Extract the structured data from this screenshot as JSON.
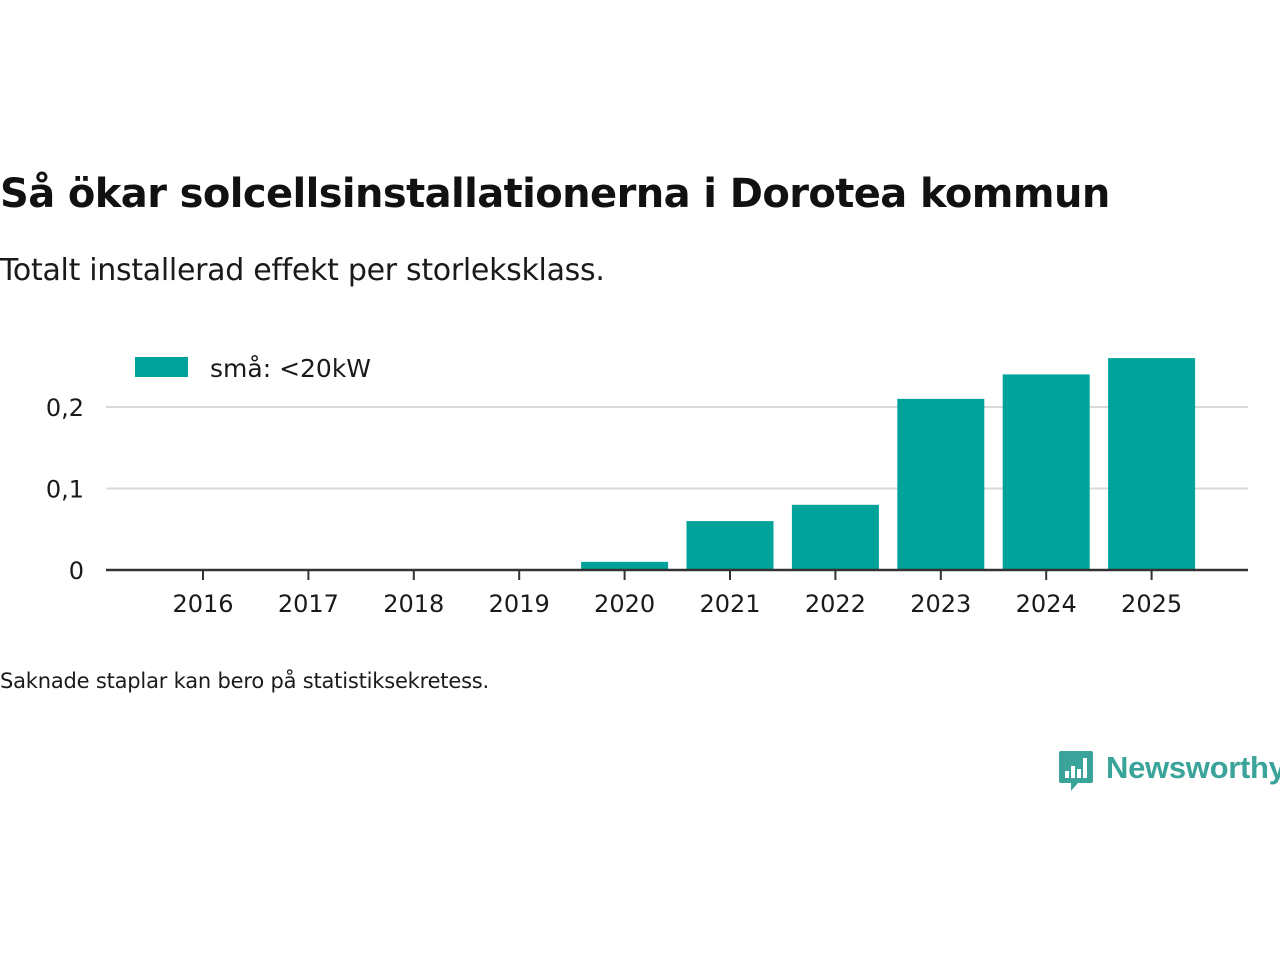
{
  "header": {
    "title": "Så ökar solcellsinstallationerna i Dorotea kommun",
    "subtitle": "Totalt installerad effekt per storleksklass."
  },
  "footer": {
    "note": "Saknade staplar kan bero på statistiksekretess.",
    "brand": "Newsworthy"
  },
  "colors": {
    "bar": "#00a39a",
    "grid": "#d9d9d9",
    "axis": "#333333",
    "text": "#1a1a1a",
    "brand": "#3aa39a"
  },
  "chart_data": {
    "type": "bar",
    "title": "Så ökar solcellsinstallationerna i Dorotea kommun",
    "subtitle": "Totalt installerad effekt per storleksklass.",
    "xlabel": "",
    "ylabel": "",
    "categories": [
      "2016",
      "2017",
      "2018",
      "2019",
      "2020",
      "2021",
      "2022",
      "2023",
      "2024",
      "2025"
    ],
    "series": [
      {
        "name": "små: <20kW",
        "values": [
          0,
          0,
          0,
          0,
          0.01,
          0.06,
          0.08,
          0.21,
          0.24,
          0.26
        ]
      }
    ],
    "ylim": [
      0,
      0.26
    ],
    "yticks": [
      0,
      0.1,
      0.2
    ],
    "ytick_labels": [
      "0",
      "0,1",
      "0,2"
    ],
    "grid": true,
    "legend": "top-left"
  }
}
